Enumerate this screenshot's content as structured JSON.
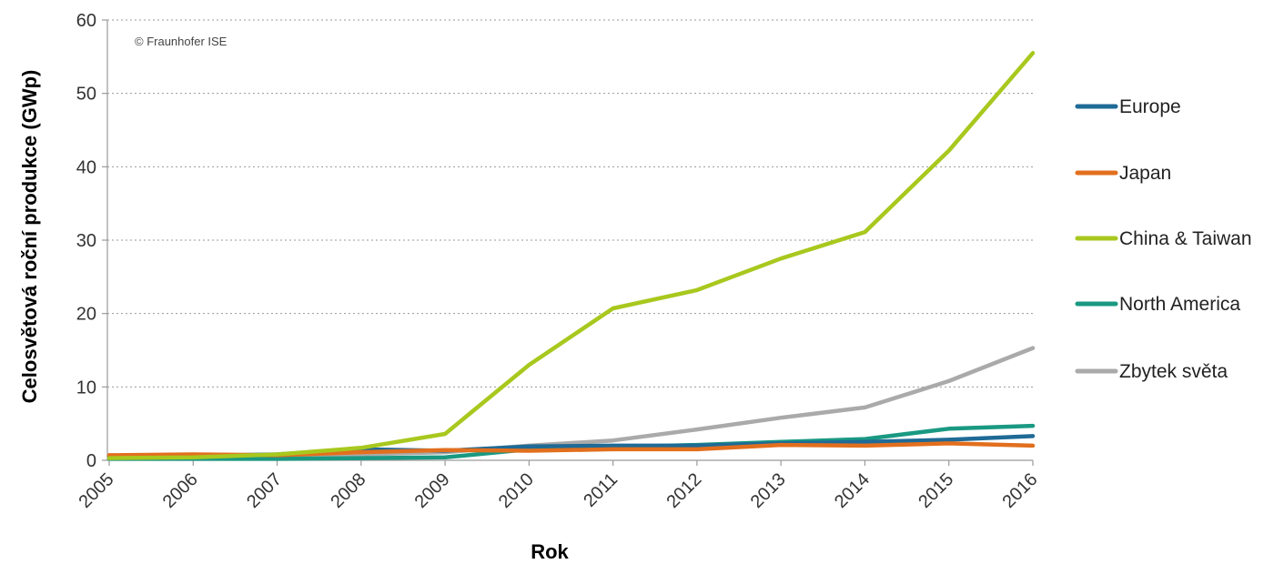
{
  "chart_data": {
    "type": "line",
    "xlabel": "Rok",
    "ylabel": "Celosvětová roční produkce (GWp)",
    "credit": "© Fraunhofer ISE",
    "x": [
      "2005",
      "2006",
      "2007",
      "2008",
      "2009",
      "2010",
      "2011",
      "2012",
      "2013",
      "2014",
      "2015",
      "2016"
    ],
    "ylim": [
      0,
      60
    ],
    "yticks": [
      0,
      10,
      20,
      30,
      40,
      50,
      60
    ],
    "grid": true,
    "legend_position": "right",
    "series": [
      {
        "name": "Europe",
        "color": "#1f6a96",
        "values": [
          0.5,
          0.6,
          0.8,
          1.5,
          1.3,
          1.9,
          2.0,
          2.0,
          2.3,
          2.5,
          2.8,
          3.3
        ]
      },
      {
        "name": "Japan",
        "color": "#e26f1e",
        "values": [
          0.7,
          0.8,
          0.7,
          1.1,
          1.4,
          1.3,
          1.5,
          1.5,
          2.1,
          2.0,
          2.3,
          2.0
        ]
      },
      {
        "name": "China & Taiwan",
        "color": "#a8c81e",
        "values": [
          0.3,
          0.4,
          0.8,
          1.7,
          3.6,
          13.0,
          20.7,
          23.2,
          27.5,
          31.1,
          42.2,
          55.5
        ]
      },
      {
        "name": "North America",
        "color": "#1a9982",
        "values": [
          0.2,
          0.2,
          0.2,
          0.3,
          0.4,
          1.5,
          1.8,
          2.1,
          2.5,
          2.9,
          4.3,
          4.7
        ]
      },
      {
        "name": "Zbytek světa",
        "color": "#aaaaaa",
        "values": [
          0.3,
          0.4,
          0.5,
          0.8,
          1.1,
          2.0,
          2.7,
          4.2,
          5.8,
          7.2,
          10.8,
          15.3
        ]
      }
    ]
  }
}
